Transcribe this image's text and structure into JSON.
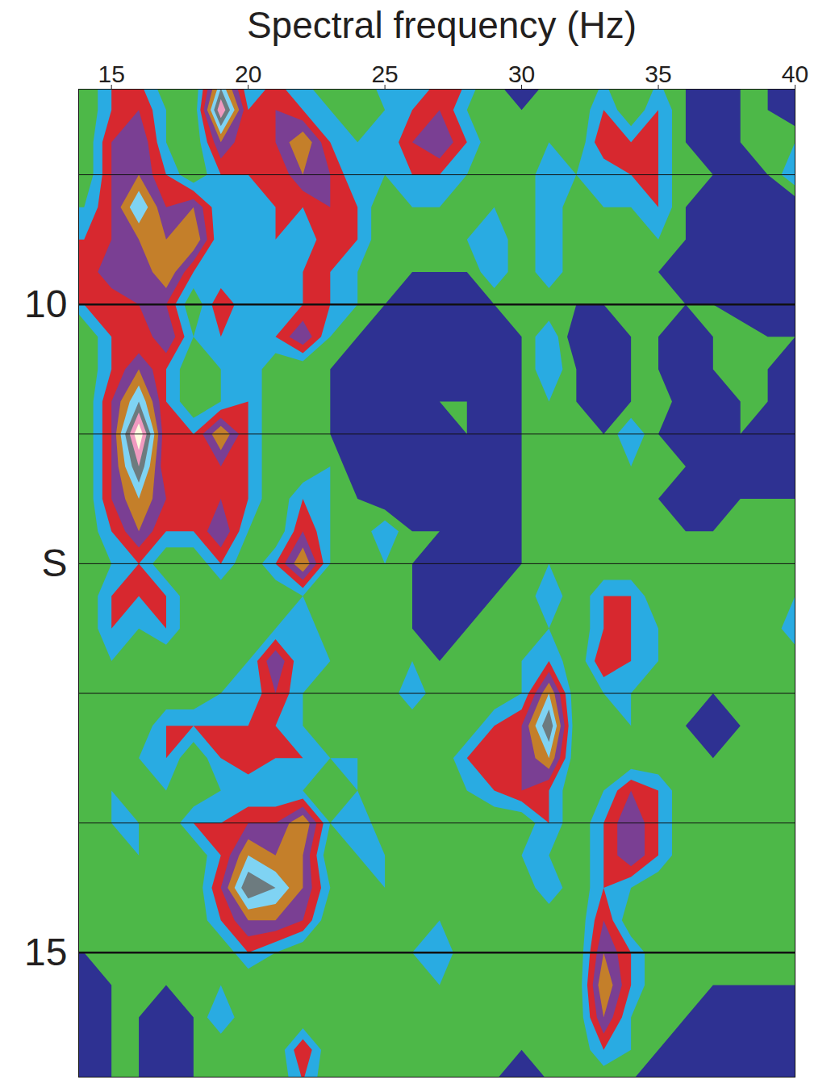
{
  "chart_data": {
    "type": "heatmap",
    "x_label": "Spectral frequency (Hz)",
    "xlim": [
      13.8,
      40
    ],
    "xticks": [
      15,
      20,
      25,
      30,
      35,
      40
    ],
    "ylim": [
      8.34,
      15.96
    ],
    "yticks": [
      10,
      {
        "value": 12,
        "label": "S"
      },
      15
    ],
    "hlines": [
      9,
      10,
      11,
      12,
      13,
      14,
      15
    ],
    "x": [
      14,
      15,
      16,
      17,
      18,
      19,
      20,
      21,
      22,
      23,
      24,
      25,
      26,
      27,
      28,
      29,
      30,
      31,
      32,
      33,
      34,
      35,
      36,
      37,
      38,
      39,
      40
    ],
    "y": [
      8.25,
      8.5,
      8.75,
      9.0,
      9.25,
      9.5,
      9.75,
      10.0,
      10.25,
      10.5,
      10.75,
      11.0,
      11.25,
      11.5,
      11.75,
      12.0,
      12.25,
      12.5,
      12.75,
      13.0,
      13.25,
      13.5,
      13.75,
      14.0,
      14.25,
      14.5,
      14.75,
      15.0,
      15.25,
      15.5,
      15.75,
      16.0
    ],
    "values": [
      [
        1,
        3,
        3,
        1,
        1,
        6,
        2,
        3,
        2,
        1,
        1,
        3,
        2,
        3,
        3,
        1,
        0,
        1,
        1,
        2,
        1,
        2,
        1,
        0,
        1,
        1,
        0
      ],
      [
        1,
        3,
        4,
        2,
        1,
        9,
        3,
        4,
        3,
        2,
        1,
        2,
        3,
        4,
        2,
        1,
        1,
        1,
        1,
        3,
        1,
        3,
        1,
        0,
        1,
        1,
        0
      ],
      [
        1,
        4,
        5,
        2,
        1,
        5,
        3,
        4,
        6,
        3,
        2,
        2,
        4,
        5,
        3,
        1,
        1,
        2,
        1,
        4,
        3,
        3,
        1,
        0,
        1,
        1,
        2
      ],
      [
        1,
        4,
        5,
        3,
        1,
        3,
        3,
        3,
        5,
        4,
        2,
        2,
        3,
        3,
        2,
        1,
        1,
        3,
        2,
        2,
        3,
        3,
        1,
        1,
        0,
        1,
        3
      ],
      [
        2,
        4,
        7,
        4,
        5,
        2,
        2,
        3,
        3,
        4,
        3,
        1,
        2,
        2,
        1,
        2,
        1,
        3,
        1,
        2,
        2,
        3,
        1,
        0,
        1,
        0,
        0
      ],
      [
        3,
        4,
        5,
        5,
        6,
        2,
        2,
        3,
        2,
        4,
        3,
        1,
        1,
        1,
        2,
        3,
        1,
        3,
        1,
        1,
        1,
        2,
        1,
        0,
        0,
        1,
        0
      ],
      [
        3,
        5,
        4,
        6,
        3,
        2,
        3,
        2,
        3,
        3,
        2,
        1,
        1,
        1,
        1,
        3,
        1,
        3,
        1,
        1,
        1,
        1,
        0,
        0,
        0,
        0,
        1
      ],
      [
        3,
        3,
        4,
        4,
        1,
        4,
        2,
        2,
        3,
        3,
        2,
        1,
        0,
        0,
        0,
        1,
        1,
        1,
        1,
        1,
        1,
        1,
        1,
        1,
        0,
        0,
        0
      ],
      [
        1,
        3,
        3,
        5,
        2,
        3,
        2,
        3,
        5,
        2,
        1,
        0,
        0,
        0,
        0,
        0,
        1,
        3,
        0,
        0,
        1,
        1,
        0,
        1,
        2,
        1,
        1
      ],
      [
        1,
        3,
        5,
        3,
        1,
        2,
        3,
        1,
        1,
        1,
        0,
        0,
        0,
        0,
        0,
        0,
        1,
        3,
        1,
        0,
        1,
        1,
        0,
        1,
        2,
        1,
        0
      ],
      [
        1,
        4,
        7,
        3,
        1,
        2,
        3,
        1,
        1,
        1,
        0,
        0,
        0,
        1,
        1,
        0,
        1,
        2,
        1,
        0,
        1,
        2,
        0,
        0,
        1,
        1,
        0
      ],
      [
        1,
        4,
        10,
        3,
        3,
        6,
        3,
        1,
        1,
        1,
        0,
        0,
        0,
        0,
        1,
        0,
        1,
        2,
        1,
        1,
        3,
        1,
        0,
        0,
        1,
        0,
        0
      ],
      [
        1,
        4,
        8,
        3,
        3,
        4,
        3,
        1,
        1,
        2,
        0,
        0,
        0,
        0,
        0,
        0,
        1,
        2,
        1,
        1,
        2,
        1,
        1,
        0,
        0,
        0,
        0
      ],
      [
        1,
        4,
        6,
        4,
        3,
        4,
        3,
        1,
        3,
        2,
        1,
        0,
        0,
        0,
        0,
        0,
        1,
        1,
        1,
        1,
        1,
        1,
        0,
        0,
        1,
        1,
        1
      ],
      [
        1,
        3,
        5,
        3,
        3,
        5,
        2,
        1,
        4,
        2,
        1,
        3,
        1,
        1,
        1,
        0,
        1,
        1,
        1,
        1,
        1,
        1,
        1,
        1,
        1,
        1,
        1
      ],
      [
        1,
        2,
        3,
        1,
        1,
        3,
        1,
        3,
        6,
        2,
        1,
        2,
        1,
        0,
        0,
        0,
        1,
        2,
        1,
        1,
        1,
        1,
        1,
        1,
        1,
        1,
        1
      ],
      [
        1,
        3,
        3,
        3,
        1,
        1,
        2,
        1,
        2,
        1,
        2,
        1,
        1,
        0,
        0,
        1,
        1,
        3,
        1,
        3,
        3,
        1,
        1,
        1,
        1,
        1,
        2
      ],
      [
        1,
        3,
        2,
        3,
        1,
        1,
        1,
        2,
        3,
        1,
        1,
        1,
        1,
        0,
        1,
        1,
        1,
        2,
        1,
        3,
        3,
        2,
        1,
        1,
        1,
        1,
        3
      ],
      [
        1,
        2,
        1,
        1,
        2,
        1,
        2,
        5,
        2,
        2,
        1,
        1,
        2,
        1,
        1,
        1,
        2,
        3,
        1,
        4,
        3,
        2,
        1,
        1,
        1,
        1,
        1
      ],
      [
        1,
        2,
        1,
        1,
        1,
        2,
        2,
        4,
        2,
        1,
        1,
        1,
        3,
        1,
        1,
        1,
        2,
        6,
        1,
        2,
        2,
        1,
        1,
        1,
        1,
        1,
        1
      ],
      [
        1,
        1,
        1,
        3,
        3,
        3,
        3,
        3,
        2,
        1,
        1,
        1,
        1,
        1,
        1,
        3,
        4,
        8,
        1,
        1,
        2,
        1,
        1,
        0,
        1,
        1,
        1
      ],
      [
        1,
        1,
        2,
        3,
        1,
        3,
        4,
        3,
        3,
        2,
        2,
        1,
        1,
        1,
        3,
        3,
        4,
        6,
        1,
        1,
        1,
        1,
        1,
        1,
        1,
        1,
        1
      ],
      [
        1,
        2,
        1,
        2,
        1,
        2,
        2,
        2,
        2,
        1,
        2,
        1,
        1,
        1,
        2,
        3,
        4,
        3,
        1,
        2,
        4,
        3,
        1,
        1,
        1,
        1,
        1
      ],
      [
        1,
        2,
        2,
        1,
        3,
        3,
        4,
        4,
        6,
        2,
        3,
        1,
        1,
        1,
        1,
        1,
        1,
        3,
        1,
        3,
        5,
        3,
        1,
        1,
        1,
        1,
        1
      ],
      [
        1,
        1,
        2,
        1,
        1,
        3,
        6,
        5,
        5,
        1,
        2,
        2,
        1,
        1,
        1,
        1,
        2,
        2,
        1,
        3,
        5,
        3,
        1,
        1,
        1,
        1,
        1
      ],
      [
        1,
        1,
        1,
        1,
        1,
        4,
        8,
        7,
        5,
        2,
        1,
        2,
        1,
        1,
        1,
        1,
        1,
        3,
        1,
        3,
        2,
        1,
        1,
        1,
        1,
        2,
        1
      ],
      [
        1,
        1,
        1,
        1,
        1,
        3,
        5,
        5,
        4,
        1,
        1,
        2,
        1,
        2,
        1,
        1,
        1,
        1,
        1,
        4,
        1,
        1,
        2,
        1,
        1,
        2,
        1
      ],
      [
        1,
        1,
        1,
        1,
        1,
        1,
        3,
        2,
        1,
        1,
        1,
        1,
        2,
        3,
        1,
        1,
        1,
        1,
        1,
        5,
        3,
        1,
        1,
        1,
        2,
        1,
        1
      ],
      [
        0,
        1,
        1,
        1,
        1,
        2,
        1,
        1,
        1,
        1,
        1,
        1,
        1,
        2,
        1,
        1,
        1,
        1,
        1,
        6,
        3,
        1,
        1,
        1,
        1,
        1,
        1
      ],
      [
        0,
        1,
        1,
        0,
        1,
        3,
        1,
        1,
        1,
        1,
        1,
        1,
        1,
        1,
        1,
        1,
        1,
        1,
        1,
        5,
        2,
        1,
        1,
        0,
        0,
        0,
        0
      ],
      [
        0,
        1,
        1,
        0,
        1,
        1,
        1,
        1,
        4,
        1,
        1,
        1,
        1,
        1,
        1,
        1,
        1,
        1,
        1,
        3,
        2,
        1,
        0,
        0,
        0,
        0,
        0
      ],
      [
        0,
        1,
        1,
        0,
        1,
        1,
        1,
        1,
        3,
        1,
        1,
        1,
        1,
        1,
        1,
        1,
        0,
        1,
        1,
        1,
        1,
        0,
        0,
        0,
        0,
        0,
        0
      ]
    ],
    "levels": [
      0,
      1,
      2,
      3,
      4,
      5,
      6,
      7,
      8,
      9,
      10
    ],
    "colors": [
      "#2e3192",
      "#4db848",
      "#29abe2",
      "#d7282f",
      "#7a3f93",
      "#c47f2a",
      "#7fd3f3",
      "#6d7b7f",
      "#f09ac0",
      "#fffbe0",
      "#231f20"
    ]
  }
}
